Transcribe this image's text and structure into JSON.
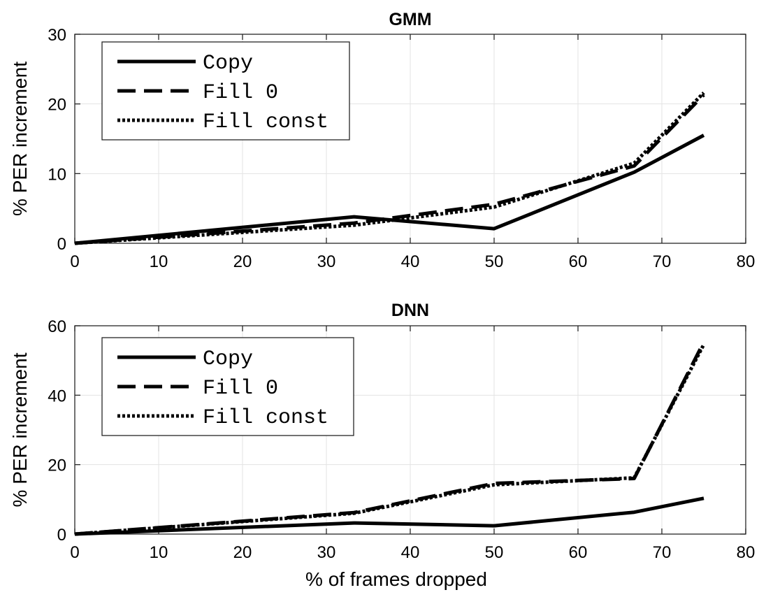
{
  "chart_data": [
    {
      "type": "line",
      "title": "GMM",
      "xlabel": "",
      "ylabel": "% PER increment",
      "xlim": [
        0,
        80
      ],
      "ylim": [
        0,
        30
      ],
      "xticks": [
        0,
        10,
        20,
        30,
        40,
        50,
        60,
        70,
        80
      ],
      "yticks": [
        0,
        10,
        20,
        30
      ],
      "grid": true,
      "legend_position": "top-left",
      "x": [
        0,
        33.3,
        50,
        66.7,
        75
      ],
      "series": [
        {
          "name": "Copy",
          "style": "solid",
          "values": [
            0,
            3.8,
            2.1,
            10.2,
            15.5
          ]
        },
        {
          "name": "Fill 0",
          "style": "dashed",
          "values": [
            0,
            2.9,
            5.6,
            11.1,
            21.3
          ]
        },
        {
          "name": "Fill const",
          "style": "dotted",
          "values": [
            0,
            2.6,
            5.2,
            11.5,
            21.6
          ]
        }
      ]
    },
    {
      "type": "line",
      "title": "DNN",
      "xlabel": "% of frames dropped",
      "ylabel": "% PER increment",
      "xlim": [
        0,
        80
      ],
      "ylim": [
        0,
        60
      ],
      "xticks": [
        0,
        10,
        20,
        30,
        40,
        50,
        60,
        70,
        80
      ],
      "yticks": [
        0,
        20,
        40,
        60
      ],
      "grid": true,
      "legend_position": "top-left",
      "x": [
        0,
        33.3,
        50,
        66.7,
        75
      ],
      "series": [
        {
          "name": "Copy",
          "style": "solid",
          "values": [
            0,
            3.2,
            2.4,
            6.3,
            10.3
          ]
        },
        {
          "name": "Fill 0",
          "style": "dashed",
          "values": [
            0,
            6.2,
            14.6,
            16.0,
            55.3
          ]
        },
        {
          "name": "Fill const",
          "style": "dotted",
          "values": [
            0,
            6.0,
            14.2,
            16.2,
            54.6
          ]
        }
      ]
    }
  ],
  "colors": {
    "line": "#000000",
    "grid": "#e3e3e3",
    "axis": "#262626"
  }
}
